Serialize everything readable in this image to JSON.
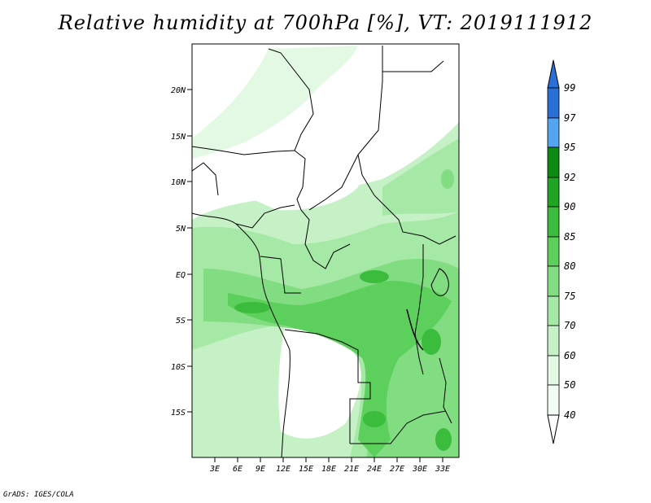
{
  "title": "Relative humidity at 700hPa [%], VT: 2019111912",
  "credit": "GrADS: IGES/COLA",
  "map": {
    "projection": "lat-lon",
    "lon_range": [
      0,
      35
    ],
    "lat_range": [
      -20,
      25
    ],
    "lon_ticks": [
      "3E",
      "6E",
      "9E",
      "12E",
      "15E",
      "18E",
      "21E",
      "24E",
      "27E",
      "30E",
      "33E"
    ],
    "lat_ticks": [
      "20N",
      "15N",
      "10N",
      "5N",
      "EQ",
      "5S",
      "10S",
      "15S"
    ]
  },
  "colorbar": {
    "levels": [
      "99",
      "97",
      "95",
      "92",
      "90",
      "85",
      "80",
      "75",
      "70",
      "60",
      "50",
      "40"
    ],
    "colors": [
      "#2a6fd6",
      "#3f8ce8",
      "#54a4f0",
      "#0e8a14",
      "#1fa423",
      "#3cbc3c",
      "#5ccf5c",
      "#82dc82",
      "#a6e8a6",
      "#c6f1c6",
      "#e4f9e4",
      "#ffffff"
    ]
  }
}
